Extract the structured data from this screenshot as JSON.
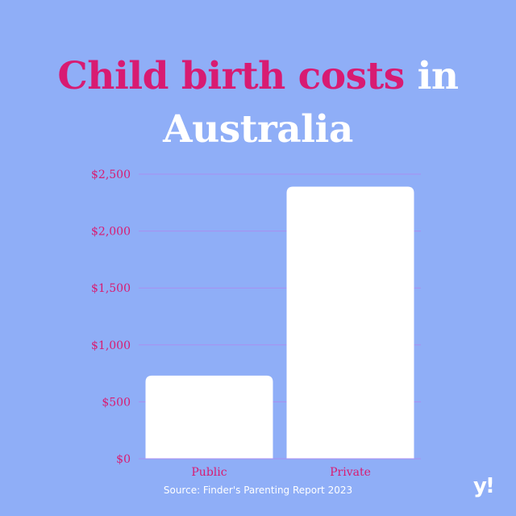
{
  "title": {
    "line1_accent": "Child birth costs",
    "line1_plain": " in",
    "line2_plain": "Australia"
  },
  "source": "Source: Finder's Parenting Report 2023",
  "logo": "y!",
  "colors": {
    "background": "#8faef7",
    "accent": "#d81b72",
    "bar": "#ffffff",
    "gridline": "#a98ef0"
  },
  "chart_data": {
    "type": "bar",
    "categories": [
      "Public",
      "Private"
    ],
    "values": [
      730,
      2390
    ],
    "ylim": [
      0,
      2500
    ],
    "yticks": [
      0,
      500,
      1000,
      1500,
      2000,
      2500
    ],
    "ytick_labels": [
      "$0",
      "$500",
      "$1,000",
      "$1,500",
      "$2,000",
      "$2,500"
    ],
    "grid": true,
    "legend": "none"
  }
}
